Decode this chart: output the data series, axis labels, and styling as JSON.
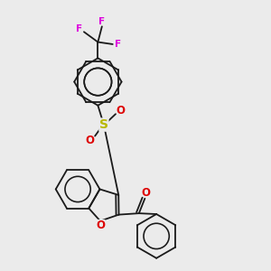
{
  "background_color": "#ebebeb",
  "bond_color": "#1a1a1a",
  "sulfur_color": "#b8b800",
  "oxygen_color": "#dd0000",
  "fluorine_color": "#dd00dd",
  "lw": 1.3,
  "figsize": [
    3.0,
    3.0
  ],
  "dpi": 100,
  "xlim": [
    0,
    10
  ],
  "ylim": [
    0,
    10
  ]
}
